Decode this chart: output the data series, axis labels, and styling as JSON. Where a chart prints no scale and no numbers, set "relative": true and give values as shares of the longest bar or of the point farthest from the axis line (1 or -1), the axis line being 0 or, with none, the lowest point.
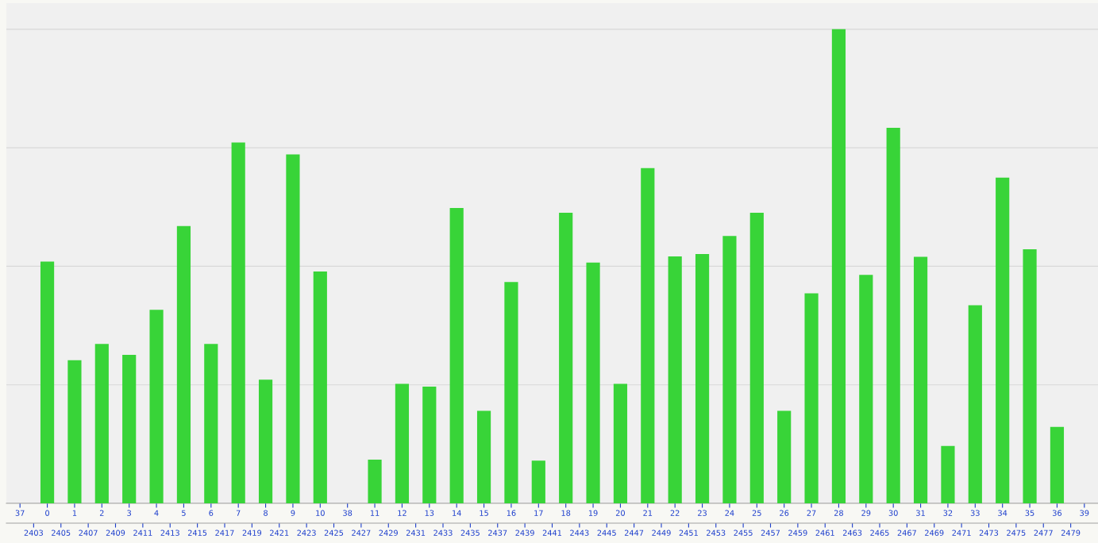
{
  "chart_data": {
    "type": "bar",
    "relative": true,
    "color": "#38d438",
    "grid": "y",
    "categories": [
      "37",
      "0",
      "1",
      "2",
      "3",
      "4",
      "5",
      "6",
      "7",
      "8",
      "9",
      "10",
      "38",
      "11",
      "12",
      "13",
      "14",
      "15",
      "16",
      "17",
      "18",
      "19",
      "20",
      "21",
      "22",
      "23",
      "24",
      "25",
      "26",
      "27",
      "28",
      "29",
      "30",
      "31",
      "32",
      "33",
      "34",
      "35",
      "36",
      "39"
    ],
    "values": [
      null,
      0.51,
      0.302,
      0.336,
      0.313,
      0.408,
      0.585,
      0.336,
      0.761,
      0.261,
      0.736,
      0.489,
      null,
      0.092,
      0.252,
      0.246,
      0.623,
      0.195,
      0.467,
      0.09,
      0.613,
      0.508,
      0.252,
      0.707,
      0.521,
      0.526,
      0.564,
      0.613,
      0.195,
      0.443,
      1,
      0.482,
      0.792,
      0.52,
      0.121,
      0.418,
      0.687,
      0.536,
      0.161,
      null
    ],
    "x2lim": [
      2401,
      2481
    ],
    "x2ticks": [
      2403,
      2405,
      2407,
      2409,
      2411,
      2413,
      2415,
      2417,
      2419,
      2421,
      2423,
      2425,
      2427,
      2429,
      2431,
      2433,
      2435,
      2437,
      2439,
      2441,
      2443,
      2445,
      2447,
      2449,
      2451,
      2453,
      2455,
      2457,
      2459,
      2461,
      2463,
      2465,
      2467,
      2469,
      2471,
      2473,
      2475,
      2477,
      2479
    ]
  }
}
